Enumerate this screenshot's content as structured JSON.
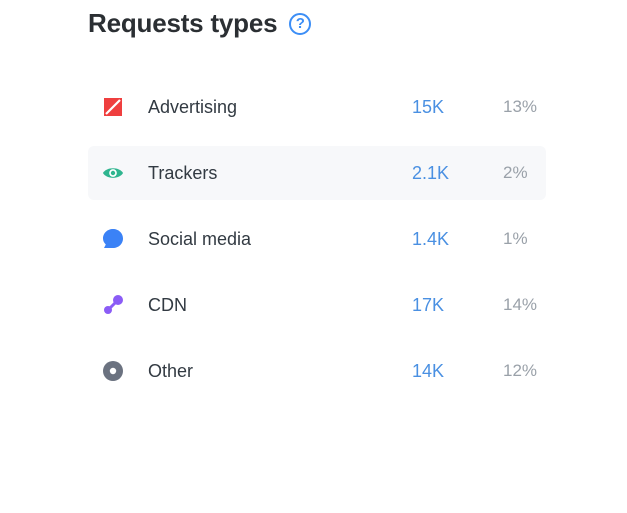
{
  "header": {
    "title": "Requests types",
    "help_icon": "question-circle-icon"
  },
  "colors": {
    "accent": "#3c8ef6",
    "advertising": "#ef3f3f",
    "trackers": "#2fb58f",
    "social": "#3b82f6",
    "cdn": "#8b5cf6",
    "other": "#6b7280"
  },
  "rows": [
    {
      "label": "Advertising",
      "count": "15K",
      "percent": "13%",
      "icon": "advertising-icon"
    },
    {
      "label": "Trackers",
      "count": "2.1K",
      "percent": "2%",
      "icon": "eye-icon"
    },
    {
      "label": "Social media",
      "count": "1.4K",
      "percent": "1%",
      "icon": "chat-bubble-icon"
    },
    {
      "label": "CDN",
      "count": "17K",
      "percent": "14%",
      "icon": "cdn-nodes-icon"
    },
    {
      "label": "Other",
      "count": "14K",
      "percent": "12%",
      "icon": "circle-dot-icon"
    }
  ]
}
